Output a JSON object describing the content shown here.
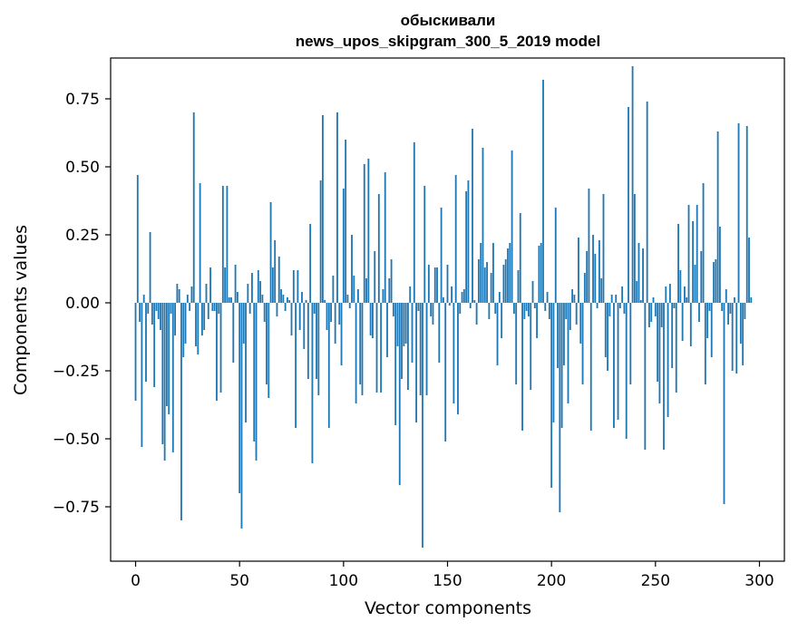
{
  "chart_data": {
    "type": "bar",
    "title": "обыскивали",
    "subtitle": "news_upos_skipgram_300_5_2019 model",
    "xlabel": "Vector components",
    "ylabel": "Components values",
    "xlim": [
      -12,
      312
    ],
    "ylim": [
      -0.95,
      0.9
    ],
    "xticks": [
      0,
      50,
      100,
      150,
      200,
      250,
      300
    ],
    "xtick_labels": [
      "0",
      "50",
      "100",
      "150",
      "200",
      "250",
      "300"
    ],
    "yticks": [
      0.75,
      0.5,
      0.25,
      0.0,
      -0.25,
      -0.5,
      -0.75
    ],
    "ytick_labels": [
      "0.75",
      "0.50",
      "0.25",
      "0.00",
      "−0.25",
      "−0.50",
      "−0.75"
    ],
    "grid": false,
    "color": "#1f77b4",
    "values": [
      -0.36,
      0.47,
      -0.07,
      -0.53,
      0.03,
      -0.29,
      -0.04,
      0.26,
      -0.08,
      -0.31,
      -0.03,
      -0.06,
      -0.1,
      -0.52,
      -0.58,
      -0.38,
      -0.41,
      -0.04,
      -0.55,
      -0.12,
      0.07,
      0.05,
      -0.8,
      -0.2,
      -0.15,
      0.03,
      -0.03,
      0.06,
      0.7,
      -0.16,
      -0.19,
      0.44,
      -0.12,
      -0.1,
      0.07,
      -0.06,
      0.13,
      -0.03,
      -0.03,
      -0.36,
      -0.04,
      -0.33,
      0.43,
      0.13,
      0.43,
      0.02,
      0.02,
      -0.22,
      0.14,
      0.04,
      -0.7,
      -0.83,
      -0.15,
      -0.44,
      0.07,
      -0.04,
      0.11,
      -0.51,
      -0.58,
      0.12,
      0.08,
      0.03,
      -0.07,
      -0.3,
      -0.35,
      0.37,
      0.13,
      0.23,
      -0.05,
      0.17,
      0.05,
      0.03,
      -0.03,
      0.02,
      0.01,
      -0.12,
      0.12,
      -0.46,
      0.12,
      -0.1,
      0.04,
      -0.17,
      0.01,
      -0.28,
      0.29,
      -0.59,
      -0.04,
      -0.28,
      -0.34,
      0.45,
      0.69,
      0.01,
      -0.1,
      -0.46,
      -0.07,
      0.1,
      -0.15,
      0.7,
      -0.08,
      -0.23,
      0.42,
      0.6,
      0.03,
      -0.02,
      0.25,
      0.1,
      -0.37,
      0.05,
      -0.3,
      -0.34,
      0.51,
      0.09,
      0.53,
      -0.12,
      -0.13,
      0.19,
      -0.33,
      0.4,
      -0.33,
      0.05,
      0.48,
      -0.2,
      0.09,
      0.16,
      -0.05,
      -0.45,
      -0.16,
      -0.67,
      -0.28,
      -0.16,
      -0.15,
      -0.32,
      0.06,
      -0.22,
      0.59,
      -0.44,
      -0.03,
      -0.34,
      -0.9,
      0.43,
      -0.34,
      0.14,
      -0.05,
      -0.08,
      0.13,
      0.13,
      -0.22,
      0.35,
      0.02,
      -0.51,
      0.14,
      -0.01,
      0.06,
      -0.37,
      0.47,
      -0.41,
      -0.04,
      0.04,
      0.05,
      0.41,
      0.45,
      -0.02,
      0.64,
      0.01,
      -0.08,
      0.16,
      0.22,
      0.57,
      0.13,
      0.15,
      -0.06,
      0.11,
      0.22,
      -0.04,
      -0.23,
      0.04,
      -0.13,
      0.14,
      0.16,
      0.2,
      0.22,
      0.56,
      -0.04,
      -0.3,
      0.12,
      0.33,
      -0.47,
      -0.06,
      -0.03,
      -0.05,
      -0.32,
      0.08,
      -0.02,
      -0.13,
      0.21,
      0.22,
      0.82,
      -0.03,
      0.04,
      -0.06,
      -0.68,
      -0.44,
      0.35,
      -0.24,
      -0.77,
      -0.46,
      -0.23,
      -0.06,
      -0.37,
      -0.1,
      0.05,
      0.03,
      -0.08,
      0.24,
      -0.15,
      -0.3,
      0.11,
      0.19,
      0.42,
      -0.47,
      0.25,
      0.18,
      -0.02,
      0.23,
      0.09,
      0.4,
      -0.2,
      -0.25,
      -0.05,
      0.03,
      -0.46,
      0.03,
      -0.43,
      -0.02,
      0.06,
      -0.04,
      -0.5,
      0.72,
      -0.3,
      0.87,
      0.4,
      0.08,
      0.22,
      0.01,
      0.2,
      -0.54,
      0.74,
      -0.09,
      -0.07,
      0.02,
      -0.05,
      -0.29,
      -0.37,
      -0.09,
      -0.54,
      0.06,
      -0.42,
      0.07,
      -0.24,
      -0.02,
      -0.33,
      0.29,
      0.12,
      -0.14,
      0.06,
      0.02,
      0.36,
      -0.16,
      0.3,
      0.14,
      0.36,
      -0.07,
      0.19,
      0.44,
      -0.3,
      -0.13,
      -0.03,
      -0.2,
      0.15,
      0.16,
      0.63,
      0.28,
      -0.03,
      -0.74,
      0.05,
      -0.08,
      -0.04,
      -0.25,
      0.02,
      -0.26,
      0.66,
      -0.15,
      -0.23,
      -0.06,
      0.65,
      0.24,
      0.02
    ]
  }
}
